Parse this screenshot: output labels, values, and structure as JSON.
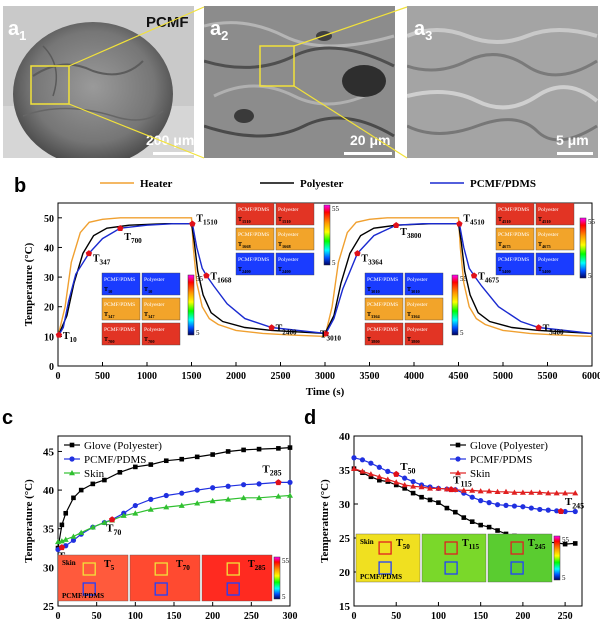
{
  "panel_a": {
    "a1": {
      "letter": "a",
      "sub": "1",
      "tag": "PCMF",
      "scale": "200 μm"
    },
    "a2": {
      "letter": "a",
      "sub": "2",
      "scale": "20 μm"
    },
    "a3": {
      "letter": "a",
      "sub": "3",
      "scale": "5 μm"
    }
  },
  "panel_b": {
    "letter": "b",
    "xlabel": "Time (s)",
    "ylabel": "Temperature (°C)",
    "legend": [
      "Heater",
      "Polyester",
      "PCMF/PDMS"
    ],
    "thermal_labels": {
      "left": "PCMF/PDMS",
      "right": "Polyester",
      "cbar_max": "55",
      "cbar_min": "5"
    },
    "insets": [
      {
        "times": [
          "T10",
          "T347",
          "T700"
        ]
      },
      {
        "times": [
          "T1510",
          "T1668",
          "T2400"
        ]
      },
      {
        "times": [
          "T3010",
          "T3364",
          "T3800"
        ]
      },
      {
        "times": [
          "T4510",
          "T4675",
          "T5400"
        ]
      }
    ]
  },
  "panel_c": {
    "letter": "c",
    "xlabel": "Time (s)",
    "ylabel": "Temperature (°C)",
    "legend": [
      "Glove (Polyester)",
      "PCMF/PDMS",
      "Skin"
    ],
    "inset_labels": {
      "skin": "Skin",
      "pcmf": "PCMF/PDMS",
      "t1": "T5",
      "t2": "T70",
      "t3": "T285",
      "cbar_max": "55",
      "cbar_min": "5"
    }
  },
  "panel_d": {
    "letter": "d",
    "xlabel": "Time (s)",
    "ylabel": "Temperature (°C)",
    "legend": [
      "Glove (Polyester)",
      "PCMF/PDMS",
      "Skin"
    ],
    "inset_labels": {
      "skin": "Skin",
      "pcmf": "PCMF/PDMS",
      "t1": "T50",
      "t2": "T115",
      "t3": "T245",
      "cbar_max": "55",
      "cbar_min": "5"
    }
  },
  "chart_data": [
    {
      "type": "line",
      "id": "b",
      "xlabel": "Time (s)",
      "ylabel": "Temperature (°C)",
      "xlim": [
        0,
        6000
      ],
      "ylim": [
        0,
        55
      ],
      "xticks": [
        0,
        500,
        1000,
        1500,
        2000,
        2500,
        3000,
        3500,
        4000,
        4500,
        5000,
        5500,
        6000
      ],
      "yticks": [
        0,
        10,
        20,
        30,
        40,
        50
      ],
      "series": [
        {
          "name": "Heater",
          "color": "#f0a030",
          "x": [
            0,
            80,
            150,
            250,
            350,
            500,
            700,
            1000,
            1500,
            1520,
            1560,
            1620,
            1700,
            1800,
            2000,
            2300,
            2600,
            3000,
            3080,
            3150,
            3250,
            3350,
            3500,
            3700,
            4000,
            4500,
            4520,
            4560,
            4620,
            4700,
            4800,
            5000,
            5300,
            5600,
            6000
          ],
          "y": [
            10,
            20,
            35,
            45,
            48.5,
            49.5,
            50,
            50,
            50,
            40,
            28,
            20,
            16,
            14,
            12,
            11,
            10.5,
            10,
            20,
            35,
            45,
            48.5,
            49.5,
            50,
            50,
            50,
            40,
            28,
            20,
            16,
            14,
            12,
            11,
            10.5,
            10
          ]
        },
        {
          "name": "Polyester",
          "color": "#000000",
          "x": [
            0,
            100,
            180,
            280,
            400,
            550,
            800,
            1200,
            1500,
            1530,
            1570,
            1630,
            1720,
            1850,
            2100,
            2400,
            2700,
            3000,
            3100,
            3180,
            3280,
            3400,
            3550,
            3800,
            4200,
            4500,
            4530,
            4570,
            4630,
            4720,
            4850,
            5100,
            5400,
            5700,
            6000
          ],
          "y": [
            10,
            17,
            28,
            38,
            44,
            46.5,
            47.5,
            48,
            48,
            42,
            32,
            24,
            18,
            15,
            13,
            12,
            11.5,
            11,
            17,
            28,
            38,
            44,
            46.5,
            47.5,
            48,
            48,
            42,
            32,
            24,
            18,
            15,
            13,
            12,
            11.5,
            11
          ]
        },
        {
          "name": "PCMF/PDMS",
          "color": "#1a2ad0",
          "x": [
            0,
            60,
            120,
            200,
            347,
            500,
            700,
            1000,
            1300,
            1510,
            1560,
            1620,
            1668,
            1750,
            1900,
            2100,
            2400,
            2700,
            3010,
            3100,
            3200,
            3364,
            3550,
            3800,
            4100,
            4510,
            4560,
            4620,
            4675,
            4760,
            4950,
            5200,
            5400,
            5700,
            6000
          ],
          "y": [
            10,
            13,
            22,
            31,
            38,
            43,
            46.5,
            47.5,
            48,
            48,
            40,
            33,
            30.5,
            27,
            21,
            16,
            13,
            12,
            11,
            16,
            26,
            38,
            44,
            47.5,
            48,
            48,
            40,
            33,
            30.5,
            27,
            20,
            15,
            13,
            12,
            11
          ]
        }
      ]
    },
    {
      "type": "line",
      "id": "c",
      "xlabel": "Time (s)",
      "ylabel": "Temperature (°C)",
      "xlim": [
        0,
        300
      ],
      "ylim": [
        25,
        47
      ],
      "xticks": [
        0,
        50,
        100,
        150,
        200,
        250,
        300
      ],
      "yticks": [
        25,
        30,
        35,
        40,
        45
      ],
      "series": [
        {
          "name": "Glove (Polyester)",
          "color": "#000000",
          "marker": "square",
          "x": [
            0,
            5,
            10,
            20,
            30,
            45,
            60,
            80,
            100,
            120,
            140,
            160,
            180,
            200,
            220,
            240,
            260,
            285,
            300
          ],
          "y": [
            32.5,
            35.5,
            37,
            39,
            40,
            40.8,
            41.3,
            42.3,
            43,
            43.3,
            43.8,
            44,
            44.3,
            44.6,
            45,
            45.2,
            45.3,
            45.4,
            45.5
          ]
        },
        {
          "name": "PCMF/PDMS",
          "color": "#2030e0",
          "marker": "circle",
          "x": [
            0,
            5,
            10,
            20,
            30,
            45,
            60,
            70,
            85,
            100,
            120,
            140,
            160,
            180,
            200,
            220,
            240,
            260,
            285,
            300
          ],
          "y": [
            32.3,
            32.6,
            32.8,
            33.5,
            34.3,
            35.2,
            35.8,
            36.2,
            37,
            38,
            38.8,
            39.3,
            39.6,
            40,
            40.3,
            40.5,
            40.7,
            40.8,
            41,
            41
          ]
        },
        {
          "name": "Skin",
          "color": "#30c030",
          "marker": "triangle",
          "x": [
            0,
            5,
            10,
            20,
            30,
            45,
            60,
            70,
            85,
            100,
            120,
            140,
            160,
            180,
            200,
            220,
            240,
            260,
            285,
            300
          ],
          "y": [
            33.3,
            33.4,
            33.6,
            34,
            34.5,
            35.2,
            35.8,
            36.1,
            36.7,
            37,
            37.5,
            37.8,
            38,
            38.3,
            38.6,
            38.8,
            39,
            39,
            39.2,
            39.3
          ]
        }
      ]
    },
    {
      "type": "line",
      "id": "d",
      "xlabel": "Time (s)",
      "ylabel": "Temperature (°C)",
      "xlim": [
        0,
        270
      ],
      "ylim": [
        15,
        40
      ],
      "xticks": [
        0,
        50,
        100,
        150,
        200,
        250
      ],
      "yticks": [
        15,
        20,
        25,
        30,
        35,
        40
      ],
      "series": [
        {
          "name": "Glove (Polyester)",
          "color": "#000000",
          "marker": "square",
          "x": [
            0,
            10,
            20,
            30,
            40,
            50,
            60,
            70,
            80,
            90,
            100,
            110,
            120,
            130,
            140,
            150,
            160,
            170,
            180,
            190,
            200,
            210,
            220,
            230,
            240,
            250,
            262
          ],
          "y": [
            35.2,
            34.6,
            34,
            33.5,
            33.3,
            32.8,
            32.3,
            31.6,
            31,
            30.6,
            30.2,
            29.4,
            28.8,
            28,
            27.4,
            26.9,
            26.6,
            26.1,
            25.6,
            25.3,
            25.1,
            24.8,
            24.6,
            24.4,
            24.3,
            24.1,
            24.2
          ]
        },
        {
          "name": "PCMF/PDMS",
          "color": "#2030e0",
          "marker": "circle",
          "x": [
            0,
            10,
            20,
            30,
            40,
            50,
            60,
            70,
            80,
            90,
            100,
            110,
            120,
            130,
            140,
            150,
            160,
            170,
            180,
            190,
            200,
            210,
            220,
            230,
            240,
            250,
            262
          ],
          "y": [
            36.8,
            36.5,
            36,
            35.4,
            34.8,
            34.4,
            33.8,
            33.3,
            32.8,
            32.5,
            32.3,
            32.2,
            32.1,
            31.6,
            31,
            30.5,
            30.2,
            29.9,
            29.8,
            29.7,
            29.6,
            29.4,
            29.2,
            29.1,
            29,
            28.9,
            28.9
          ]
        },
        {
          "name": "Skin",
          "color": "#e02020",
          "marker": "triangle",
          "x": [
            0,
            10,
            20,
            30,
            40,
            50,
            60,
            70,
            80,
            90,
            100,
            110,
            120,
            130,
            140,
            150,
            160,
            170,
            180,
            190,
            200,
            210,
            220,
            230,
            240,
            250,
            262
          ],
          "y": [
            35.2,
            34.8,
            34.4,
            34,
            33.6,
            33.2,
            32.8,
            32.6,
            32.5,
            32.3,
            32.3,
            32.2,
            32.1,
            32,
            32,
            31.9,
            31.9,
            31.8,
            31.8,
            31.7,
            31.7,
            31.7,
            31.7,
            31.6,
            31.6,
            31.6,
            31.6
          ]
        }
      ]
    }
  ]
}
